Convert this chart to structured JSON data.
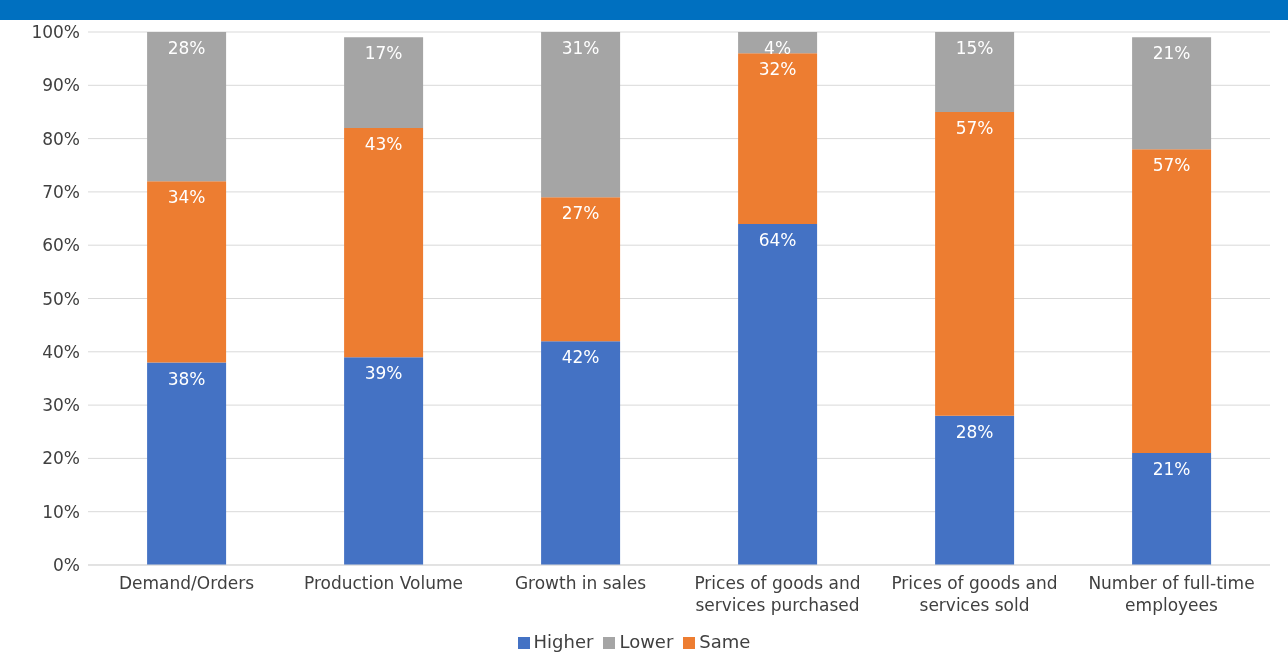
{
  "chart_data": {
    "type": "bar",
    "stacked": true,
    "categories": [
      "Demand/Orders",
      "Production Volume",
      "Growth in sales",
      "Prices of goods and services purchased",
      "Prices of goods and services sold",
      "Number of full-time employees"
    ],
    "series": [
      {
        "name": "Higher",
        "color": "#4472c4",
        "values": [
          38,
          39,
          42,
          64,
          28,
          21
        ],
        "value_labels": [
          "38%",
          "39%",
          "42%",
          "64%",
          "28%",
          "21%"
        ]
      },
      {
        "name": "Same",
        "color": "#ed7d31",
        "values": [
          34,
          43,
          27,
          32,
          57,
          57
        ],
        "value_labels": [
          "34%",
          "43%",
          "27%",
          "32%",
          "57%",
          "57%"
        ]
      },
      {
        "name": "Lower",
        "color": "#a5a5a5",
        "values": [
          28,
          17,
          31,
          4,
          15,
          21
        ],
        "value_labels": [
          "28%",
          "17%",
          "31%",
          "4%",
          "15%",
          "21%"
        ]
      }
    ],
    "ylim": [
      0,
      100
    ],
    "yticks": [
      {
        "value": 0,
        "label": "0%"
      },
      {
        "value": 10,
        "label": "10%"
      },
      {
        "value": 20,
        "label": "20%"
      },
      {
        "value": 30,
        "label": "30%"
      },
      {
        "value": 40,
        "label": "40%"
      },
      {
        "value": 50,
        "label": "50%"
      },
      {
        "value": 60,
        "label": "60%"
      },
      {
        "value": 70,
        "label": "70%"
      },
      {
        "value": 80,
        "label": "80%"
      },
      {
        "value": 90,
        "label": "90%"
      },
      {
        "value": 100,
        "label": "100%"
      }
    ],
    "grid": "y",
    "legend": "bottom"
  }
}
